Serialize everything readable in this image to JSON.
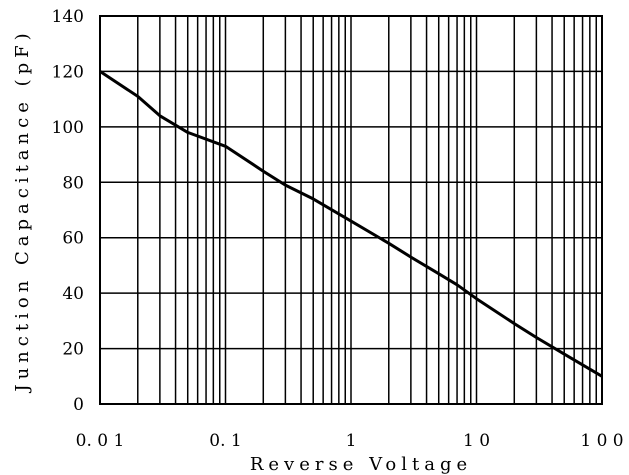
{
  "chart_data": {
    "type": "line",
    "x_scale": "log",
    "xlim": [
      0.01,
      100
    ],
    "ylim": [
      0,
      140
    ],
    "grid": true,
    "xlabel": "Reverse Voltage",
    "ylabel": "Junction Capacitance (pF)",
    "x_tick_labels": [
      "0.01",
      "0.1",
      "1",
      "10",
      "100"
    ],
    "y_tick_labels": [
      "0",
      "20",
      "40",
      "60",
      "80",
      "100",
      "120",
      "140"
    ],
    "series": [
      {
        "points": [
          [
            0.01,
            120
          ],
          [
            0.02,
            111
          ],
          [
            0.03,
            104
          ],
          [
            0.05,
            98
          ],
          [
            0.1,
            93
          ],
          [
            0.2,
            84
          ],
          [
            0.3,
            79
          ],
          [
            0.5,
            74
          ],
          [
            1,
            66
          ],
          [
            2,
            58
          ],
          [
            3,
            53
          ],
          [
            5,
            47
          ],
          [
            7,
            43
          ],
          [
            10,
            38
          ],
          [
            20,
            29
          ],
          [
            30,
            24
          ],
          [
            50,
            18
          ],
          [
            100,
            10
          ]
        ]
      }
    ]
  }
}
